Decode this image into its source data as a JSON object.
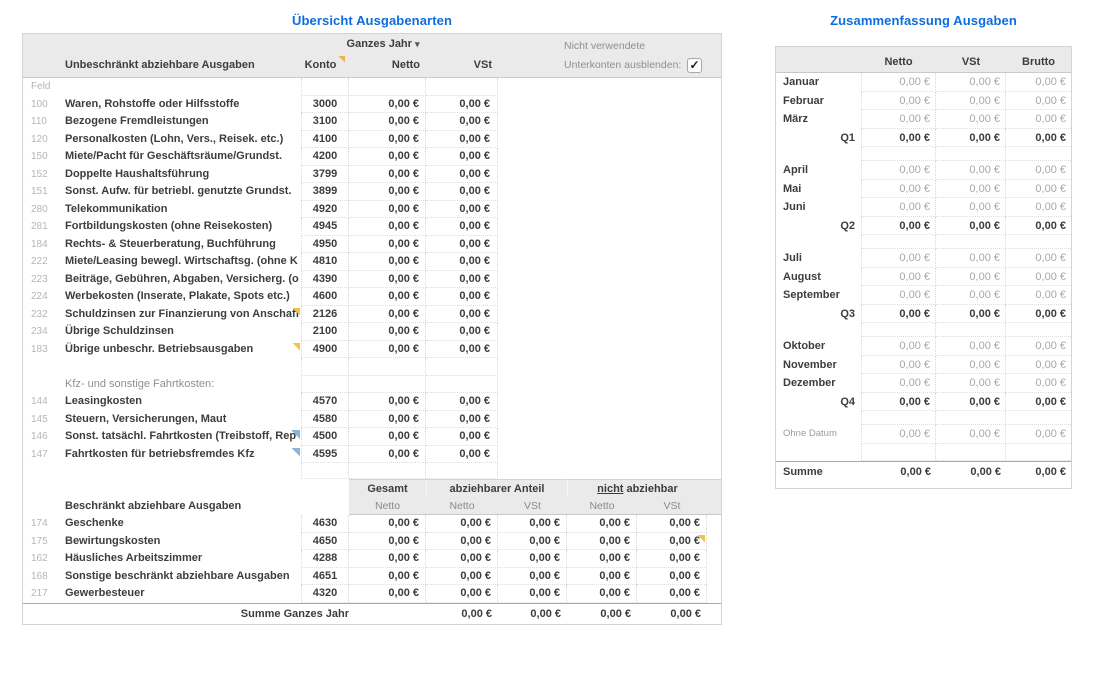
{
  "colors": {
    "accent_blue": "#0d6cdf",
    "comment_yellow": "#f2c14e",
    "clip_blue": "#8cb4d8",
    "header_gray": "#eaeaea"
  },
  "icons": {
    "dropdown_caret": "▾",
    "checkmark": "✓"
  },
  "left_table": {
    "title": "Übersicht Ausgabenarten",
    "period_label": "Ganzes Jahr",
    "hide_note_line1": "Nicht verwendete",
    "hide_note_line2": "Unterkonten ausblenden:",
    "checkbox_checked": true,
    "header": {
      "label": "Unbeschränkt abziehbare Ausgaben",
      "konto": "Konto",
      "netto": "Netto",
      "vst": "VSt"
    },
    "rows": [
      {
        "feld": "Feld",
        "label": "",
        "konto": "",
        "netto": "",
        "vst": "",
        "style": "",
        "marker": ""
      },
      {
        "feld": "100",
        "label": "Waren, Rohstoffe oder Hilfsstoffe",
        "konto": "3000",
        "netto": "0,00 €",
        "vst": "0,00 €",
        "style": "",
        "marker": ""
      },
      {
        "feld": "110",
        "label": "Bezogene Fremdleistungen",
        "konto": "3100",
        "netto": "0,00 €",
        "vst": "0,00 €",
        "style": "",
        "marker": ""
      },
      {
        "feld": "120",
        "label": "Personalkosten (Lohn, Vers., Reisek. etc.)",
        "konto": "4100",
        "netto": "0,00 €",
        "vst": "0,00 €",
        "style": "",
        "marker": ""
      },
      {
        "feld": "150",
        "label": "Miete/Pacht für Geschäftsräume/Grundst.",
        "konto": "4200",
        "netto": "0,00 €",
        "vst": "0,00 €",
        "style": "",
        "marker": ""
      },
      {
        "feld": "152",
        "label": "Doppelte Haushaltsführung",
        "konto": "3799",
        "netto": "0,00 €",
        "vst": "0,00 €",
        "style": "",
        "marker": ""
      },
      {
        "feld": "151",
        "label": "Sonst. Aufw. für betriebl. genutzte Grundst.",
        "konto": "3899",
        "netto": "0,00 €",
        "vst": "0,00 €",
        "style": "",
        "marker": ""
      },
      {
        "feld": "280",
        "label": "Telekommunikation",
        "konto": "4920",
        "netto": "0,00 €",
        "vst": "0,00 €",
        "style": "",
        "marker": ""
      },
      {
        "feld": "281",
        "label": "Fortbildungskosten (ohne Reisekosten)",
        "konto": "4945",
        "netto": "0,00 €",
        "vst": "0,00 €",
        "style": "",
        "marker": ""
      },
      {
        "feld": "184",
        "label": "Rechts- & Steuerberatung, Buchführung",
        "konto": "4950",
        "netto": "0,00 €",
        "vst": "0,00 €",
        "style": "",
        "marker": ""
      },
      {
        "feld": "222",
        "label": "Miete/Leasing bewegl. Wirtschaftsg. (ohne K",
        "konto": "4810",
        "netto": "0,00 €",
        "vst": "0,00 €",
        "style": "",
        "marker": ""
      },
      {
        "feld": "223",
        "label": "Beiträge, Gebühren, Abgaben, Versicherg. (o",
        "konto": "4390",
        "netto": "0,00 €",
        "vst": "0,00 €",
        "style": "",
        "marker": ""
      },
      {
        "feld": "224",
        "label": "Werbekosten (Inserate, Plakate, Spots etc.)",
        "konto": "4600",
        "netto": "0,00 €",
        "vst": "0,00 €",
        "style": "",
        "marker": ""
      },
      {
        "feld": "232",
        "label": "Schuldzinsen zur Finanzierung von Anschaff",
        "konto": "2126",
        "netto": "0,00 €",
        "vst": "0,00 €",
        "style": "",
        "marker": "m-comment"
      },
      {
        "feld": "234",
        "label": "Übrige Schuldzinsen",
        "konto": "2100",
        "netto": "0,00 €",
        "vst": "0,00 €",
        "style": "",
        "marker": ""
      },
      {
        "feld": "183",
        "label": "Übrige unbeschr. Betriebsausgaben",
        "konto": "4900",
        "netto": "0,00 €",
        "vst": "0,00 €",
        "style": "",
        "marker": "m-comment"
      },
      {
        "feld": "",
        "label": "",
        "konto": "",
        "netto": "",
        "vst": "",
        "style": "",
        "marker": ""
      },
      {
        "feld": "",
        "label": "Kfz- und sonstige Fahrtkosten:",
        "konto": "",
        "netto": "",
        "vst": "",
        "style": "gray",
        "marker": ""
      },
      {
        "feld": "144",
        "label": "Leasingkosten",
        "konto": "4570",
        "netto": "0,00 €",
        "vst": "0,00 €",
        "style": "",
        "marker": ""
      },
      {
        "feld": "145",
        "label": "Steuern, Versicherungen, Maut",
        "konto": "4580",
        "netto": "0,00 €",
        "vst": "0,00 €",
        "style": "",
        "marker": ""
      },
      {
        "feld": "146",
        "label": "Sonst. tatsächl. Fahrtkosten (Treibstoff, Rep",
        "konto": "4500",
        "netto": "0,00 €",
        "vst": "0,00 €",
        "style": "",
        "marker": "m-clip"
      },
      {
        "feld": "147",
        "label": "Fahrtkosten für betriebsfremdes Kfz",
        "konto": "4595",
        "netto": "0,00 €",
        "vst": "0,00 €",
        "style": "",
        "marker": "m-clip"
      },
      {
        "feld": "",
        "label": "",
        "konto": "",
        "netto": "",
        "vst": "",
        "style": "gap",
        "marker": ""
      }
    ],
    "bottom": {
      "label": "Beschränkt abziehbare Ausgaben",
      "group_gesamt": "Gesamt",
      "group_abziehbar": "abziehbarer Anteil",
      "group_nicht_underlined": "nicht",
      "group_nicht_rest": "abziehbar",
      "sub_netto": "Netto",
      "sub_vst": "VSt",
      "rows": [
        {
          "feld": "174",
          "label": "Geschenke",
          "konto": "4630",
          "gesamt": "0,00 €",
          "abz_netto": "0,00 €",
          "abz_vst": "0,00 €",
          "nicht_netto": "0,00 €",
          "nicht_vst": "0,00 €",
          "marker": ""
        },
        {
          "feld": "175",
          "label": "Bewirtungskosten",
          "konto": "4650",
          "gesamt": "0,00 €",
          "abz_netto": "0,00 €",
          "abz_vst": "0,00 €",
          "nicht_netto": "0,00 €",
          "nicht_vst": "0,00 €",
          "marker": "m-comment"
        },
        {
          "feld": "162",
          "label": "Häusliches Arbeitszimmer",
          "konto": "4288",
          "gesamt": "0,00 €",
          "abz_netto": "0,00 €",
          "abz_vst": "0,00 €",
          "nicht_netto": "0,00 €",
          "nicht_vst": "0,00 €",
          "marker": ""
        },
        {
          "feld": "168",
          "label": "Sonstige beschränkt abziehbare Ausgaben",
          "konto": "4651",
          "gesamt": "0,00 €",
          "abz_netto": "0,00 €",
          "abz_vst": "0,00 €",
          "nicht_netto": "0,00 €",
          "nicht_vst": "0,00 €",
          "marker": ""
        },
        {
          "feld": "217",
          "label": "Gewerbesteuer",
          "konto": "4320",
          "gesamt": "0,00 €",
          "abz_netto": "0,00 €",
          "abz_vst": "0,00 €",
          "nicht_netto": "0,00 €",
          "nicht_vst": "0,00 €",
          "marker": ""
        }
      ],
      "footer": {
        "label": "Summe Ganzes Jahr",
        "abz_netto": "0,00 €",
        "abz_vst": "0,00 €",
        "nicht_netto": "0,00 €",
        "nicht_vst": "0,00 €"
      }
    }
  },
  "right_table": {
    "title": "Zusammenfassung Ausgaben",
    "header": {
      "netto": "Netto",
      "vst": "VSt",
      "brutto": "Brutto"
    },
    "rows": [
      {
        "label": "Januar",
        "netto": "0,00 €",
        "vst": "0,00 €",
        "brutto": "0,00 €",
        "style": "month"
      },
      {
        "label": "Februar",
        "netto": "0,00 €",
        "vst": "0,00 €",
        "brutto": "0,00 €",
        "style": "month"
      },
      {
        "label": "März",
        "netto": "0,00 €",
        "vst": "0,00 €",
        "brutto": "0,00 €",
        "style": "month"
      },
      {
        "label": "Q1",
        "netto": "0,00 €",
        "vst": "0,00 €",
        "brutto": "0,00 €",
        "style": "quarter"
      },
      {
        "label": "",
        "netto": "",
        "vst": "",
        "brutto": "",
        "style": "blank"
      },
      {
        "label": "April",
        "netto": "0,00 €",
        "vst": "0,00 €",
        "brutto": "0,00 €",
        "style": "month"
      },
      {
        "label": "Mai",
        "netto": "0,00 €",
        "vst": "0,00 €",
        "brutto": "0,00 €",
        "style": "month"
      },
      {
        "label": "Juni",
        "netto": "0,00 €",
        "vst": "0,00 €",
        "brutto": "0,00 €",
        "style": "month"
      },
      {
        "label": "Q2",
        "netto": "0,00 €",
        "vst": "0,00 €",
        "brutto": "0,00 €",
        "style": "quarter"
      },
      {
        "label": "",
        "netto": "",
        "vst": "",
        "brutto": "",
        "style": "blank"
      },
      {
        "label": "Juli",
        "netto": "0,00 €",
        "vst": "0,00 €",
        "brutto": "0,00 €",
        "style": "month"
      },
      {
        "label": "August",
        "netto": "0,00 €",
        "vst": "0,00 €",
        "brutto": "0,00 €",
        "style": "month"
      },
      {
        "label": "September",
        "netto": "0,00 €",
        "vst": "0,00 €",
        "brutto": "0,00 €",
        "style": "month"
      },
      {
        "label": "Q3",
        "netto": "0,00 €",
        "vst": "0,00 €",
        "brutto": "0,00 €",
        "style": "quarter"
      },
      {
        "label": "",
        "netto": "",
        "vst": "",
        "brutto": "",
        "style": "blank"
      },
      {
        "label": "Oktober",
        "netto": "0,00 €",
        "vst": "0,00 €",
        "brutto": "0,00 €",
        "style": "month"
      },
      {
        "label": "November",
        "netto": "0,00 €",
        "vst": "0,00 €",
        "brutto": "0,00 €",
        "style": "month"
      },
      {
        "label": "Dezember",
        "netto": "0,00 €",
        "vst": "0,00 €",
        "brutto": "0,00 €",
        "style": "month"
      },
      {
        "label": "Q4",
        "netto": "0,00 €",
        "vst": "0,00 €",
        "brutto": "0,00 €",
        "style": "quarter"
      },
      {
        "label": "",
        "netto": "",
        "vst": "",
        "brutto": "",
        "style": "blank"
      },
      {
        "label": "Ohne Datum",
        "netto": "0,00 €",
        "vst": "0,00 €",
        "brutto": "0,00 €",
        "style": "nodate"
      },
      {
        "label": "",
        "netto": "",
        "vst": "",
        "brutto": "",
        "style": "blank2"
      },
      {
        "label": "Summe",
        "netto": "0,00 €",
        "vst": "0,00 €",
        "brutto": "0,00 €",
        "style": "sum"
      }
    ]
  }
}
